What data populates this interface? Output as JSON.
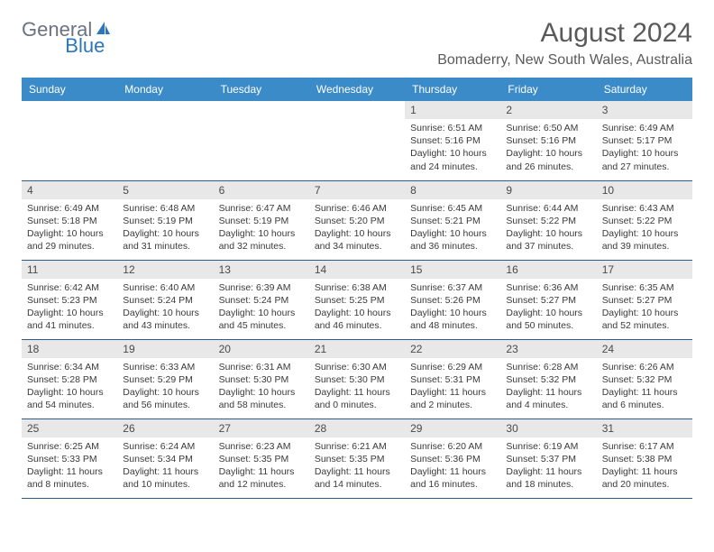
{
  "logo": {
    "general": "General",
    "blue": "Blue"
  },
  "title": "August 2024",
  "location": "Bomaderry, New South Wales, Australia",
  "colors": {
    "header_bg": "#3b8bc8",
    "header_text": "#ffffff",
    "date_bg": "#e8e8e8",
    "border": "#2d5b85",
    "logo_gray": "#6b7280",
    "logo_blue": "#2d76ba"
  },
  "day_names": [
    "Sunday",
    "Monday",
    "Tuesday",
    "Wednesday",
    "Thursday",
    "Friday",
    "Saturday"
  ],
  "weeks": [
    [
      {
        "date": "",
        "sunrise": "",
        "sunset": "",
        "daylight": ""
      },
      {
        "date": "",
        "sunrise": "",
        "sunset": "",
        "daylight": ""
      },
      {
        "date": "",
        "sunrise": "",
        "sunset": "",
        "daylight": ""
      },
      {
        "date": "",
        "sunrise": "",
        "sunset": "",
        "daylight": ""
      },
      {
        "date": "1",
        "sunrise": "Sunrise: 6:51 AM",
        "sunset": "Sunset: 5:16 PM",
        "daylight": "Daylight: 10 hours and 24 minutes."
      },
      {
        "date": "2",
        "sunrise": "Sunrise: 6:50 AM",
        "sunset": "Sunset: 5:16 PM",
        "daylight": "Daylight: 10 hours and 26 minutes."
      },
      {
        "date": "3",
        "sunrise": "Sunrise: 6:49 AM",
        "sunset": "Sunset: 5:17 PM",
        "daylight": "Daylight: 10 hours and 27 minutes."
      }
    ],
    [
      {
        "date": "4",
        "sunrise": "Sunrise: 6:49 AM",
        "sunset": "Sunset: 5:18 PM",
        "daylight": "Daylight: 10 hours and 29 minutes."
      },
      {
        "date": "5",
        "sunrise": "Sunrise: 6:48 AM",
        "sunset": "Sunset: 5:19 PM",
        "daylight": "Daylight: 10 hours and 31 minutes."
      },
      {
        "date": "6",
        "sunrise": "Sunrise: 6:47 AM",
        "sunset": "Sunset: 5:19 PM",
        "daylight": "Daylight: 10 hours and 32 minutes."
      },
      {
        "date": "7",
        "sunrise": "Sunrise: 6:46 AM",
        "sunset": "Sunset: 5:20 PM",
        "daylight": "Daylight: 10 hours and 34 minutes."
      },
      {
        "date": "8",
        "sunrise": "Sunrise: 6:45 AM",
        "sunset": "Sunset: 5:21 PM",
        "daylight": "Daylight: 10 hours and 36 minutes."
      },
      {
        "date": "9",
        "sunrise": "Sunrise: 6:44 AM",
        "sunset": "Sunset: 5:22 PM",
        "daylight": "Daylight: 10 hours and 37 minutes."
      },
      {
        "date": "10",
        "sunrise": "Sunrise: 6:43 AM",
        "sunset": "Sunset: 5:22 PM",
        "daylight": "Daylight: 10 hours and 39 minutes."
      }
    ],
    [
      {
        "date": "11",
        "sunrise": "Sunrise: 6:42 AM",
        "sunset": "Sunset: 5:23 PM",
        "daylight": "Daylight: 10 hours and 41 minutes."
      },
      {
        "date": "12",
        "sunrise": "Sunrise: 6:40 AM",
        "sunset": "Sunset: 5:24 PM",
        "daylight": "Daylight: 10 hours and 43 minutes."
      },
      {
        "date": "13",
        "sunrise": "Sunrise: 6:39 AM",
        "sunset": "Sunset: 5:24 PM",
        "daylight": "Daylight: 10 hours and 45 minutes."
      },
      {
        "date": "14",
        "sunrise": "Sunrise: 6:38 AM",
        "sunset": "Sunset: 5:25 PM",
        "daylight": "Daylight: 10 hours and 46 minutes."
      },
      {
        "date": "15",
        "sunrise": "Sunrise: 6:37 AM",
        "sunset": "Sunset: 5:26 PM",
        "daylight": "Daylight: 10 hours and 48 minutes."
      },
      {
        "date": "16",
        "sunrise": "Sunrise: 6:36 AM",
        "sunset": "Sunset: 5:27 PM",
        "daylight": "Daylight: 10 hours and 50 minutes."
      },
      {
        "date": "17",
        "sunrise": "Sunrise: 6:35 AM",
        "sunset": "Sunset: 5:27 PM",
        "daylight": "Daylight: 10 hours and 52 minutes."
      }
    ],
    [
      {
        "date": "18",
        "sunrise": "Sunrise: 6:34 AM",
        "sunset": "Sunset: 5:28 PM",
        "daylight": "Daylight: 10 hours and 54 minutes."
      },
      {
        "date": "19",
        "sunrise": "Sunrise: 6:33 AM",
        "sunset": "Sunset: 5:29 PM",
        "daylight": "Daylight: 10 hours and 56 minutes."
      },
      {
        "date": "20",
        "sunrise": "Sunrise: 6:31 AM",
        "sunset": "Sunset: 5:30 PM",
        "daylight": "Daylight: 10 hours and 58 minutes."
      },
      {
        "date": "21",
        "sunrise": "Sunrise: 6:30 AM",
        "sunset": "Sunset: 5:30 PM",
        "daylight": "Daylight: 11 hours and 0 minutes."
      },
      {
        "date": "22",
        "sunrise": "Sunrise: 6:29 AM",
        "sunset": "Sunset: 5:31 PM",
        "daylight": "Daylight: 11 hours and 2 minutes."
      },
      {
        "date": "23",
        "sunrise": "Sunrise: 6:28 AM",
        "sunset": "Sunset: 5:32 PM",
        "daylight": "Daylight: 11 hours and 4 minutes."
      },
      {
        "date": "24",
        "sunrise": "Sunrise: 6:26 AM",
        "sunset": "Sunset: 5:32 PM",
        "daylight": "Daylight: 11 hours and 6 minutes."
      }
    ],
    [
      {
        "date": "25",
        "sunrise": "Sunrise: 6:25 AM",
        "sunset": "Sunset: 5:33 PM",
        "daylight": "Daylight: 11 hours and 8 minutes."
      },
      {
        "date": "26",
        "sunrise": "Sunrise: 6:24 AM",
        "sunset": "Sunset: 5:34 PM",
        "daylight": "Daylight: 11 hours and 10 minutes."
      },
      {
        "date": "27",
        "sunrise": "Sunrise: 6:23 AM",
        "sunset": "Sunset: 5:35 PM",
        "daylight": "Daylight: 11 hours and 12 minutes."
      },
      {
        "date": "28",
        "sunrise": "Sunrise: 6:21 AM",
        "sunset": "Sunset: 5:35 PM",
        "daylight": "Daylight: 11 hours and 14 minutes."
      },
      {
        "date": "29",
        "sunrise": "Sunrise: 6:20 AM",
        "sunset": "Sunset: 5:36 PM",
        "daylight": "Daylight: 11 hours and 16 minutes."
      },
      {
        "date": "30",
        "sunrise": "Sunrise: 6:19 AM",
        "sunset": "Sunset: 5:37 PM",
        "daylight": "Daylight: 11 hours and 18 minutes."
      },
      {
        "date": "31",
        "sunrise": "Sunrise: 6:17 AM",
        "sunset": "Sunset: 5:38 PM",
        "daylight": "Daylight: 11 hours and 20 minutes."
      }
    ]
  ]
}
